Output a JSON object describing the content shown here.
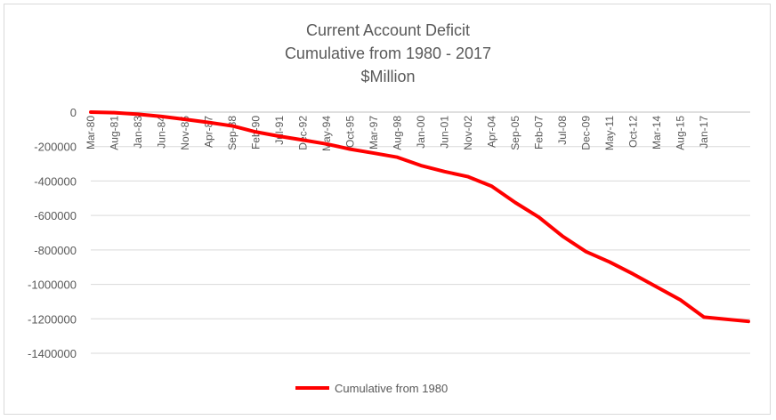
{
  "chart_data": {
    "type": "line",
    "title": [
      "Current Account Deficit",
      "Cumulative from 1980 - 2017",
      "$Million"
    ],
    "xlabel": "",
    "ylabel": "",
    "ylim": [
      -1400000,
      0
    ],
    "yticks": [
      0,
      -200000,
      -400000,
      -600000,
      -800000,
      -1000000,
      -1200000,
      -1400000
    ],
    "ytick_labels": [
      "0",
      "-200000",
      "-400000",
      "-600000",
      "-800000",
      "-1000000",
      "-1200000",
      "-1400000"
    ],
    "xtick_labels": [
      "Mar-80",
      "Aug-81",
      "Jan-83",
      "Jun-84",
      "Nov-85",
      "Apr-87",
      "Sep-88",
      "Feb-90",
      "Jul-91",
      "Dec-92",
      "May-94",
      "Oct-95",
      "Mar-97",
      "Aug-98",
      "Jan-00",
      "Jun-01",
      "Nov-02",
      "Apr-04",
      "Sep-05",
      "Feb-07",
      "Jul-08",
      "Dec-09",
      "May-11",
      "Oct-12",
      "Mar-14",
      "Aug-15",
      "Jan-17"
    ],
    "grid": true,
    "legend_position": "bottom",
    "series": [
      {
        "name": "Cumulative from 1980",
        "color": "#ff0000",
        "x": [
          "Mar-80",
          "Aug-81",
          "Jan-83",
          "Jun-84",
          "Nov-85",
          "Apr-87",
          "Sep-88",
          "Feb-90",
          "Jul-91",
          "Dec-92",
          "May-94",
          "Oct-95",
          "Mar-97",
          "Aug-98",
          "Jan-00",
          "Jun-01",
          "Nov-02",
          "Apr-04",
          "Sep-05",
          "Feb-07",
          "Jul-08",
          "Dec-09",
          "May-11",
          "Oct-12",
          "Mar-14",
          "Aug-15",
          "Jan-17",
          "Sep-17"
        ],
        "values": [
          0,
          -3000,
          -12000,
          -25000,
          -42000,
          -60000,
          -80000,
          -115000,
          -140000,
          -162000,
          -185000,
          -215000,
          -238000,
          -262000,
          -310000,
          -345000,
          -375000,
          -430000,
          -525000,
          -610000,
          -720000,
          -810000,
          -870000,
          -940000,
          -1015000,
          -1090000,
          -1190000,
          -1215000
        ]
      }
    ]
  }
}
